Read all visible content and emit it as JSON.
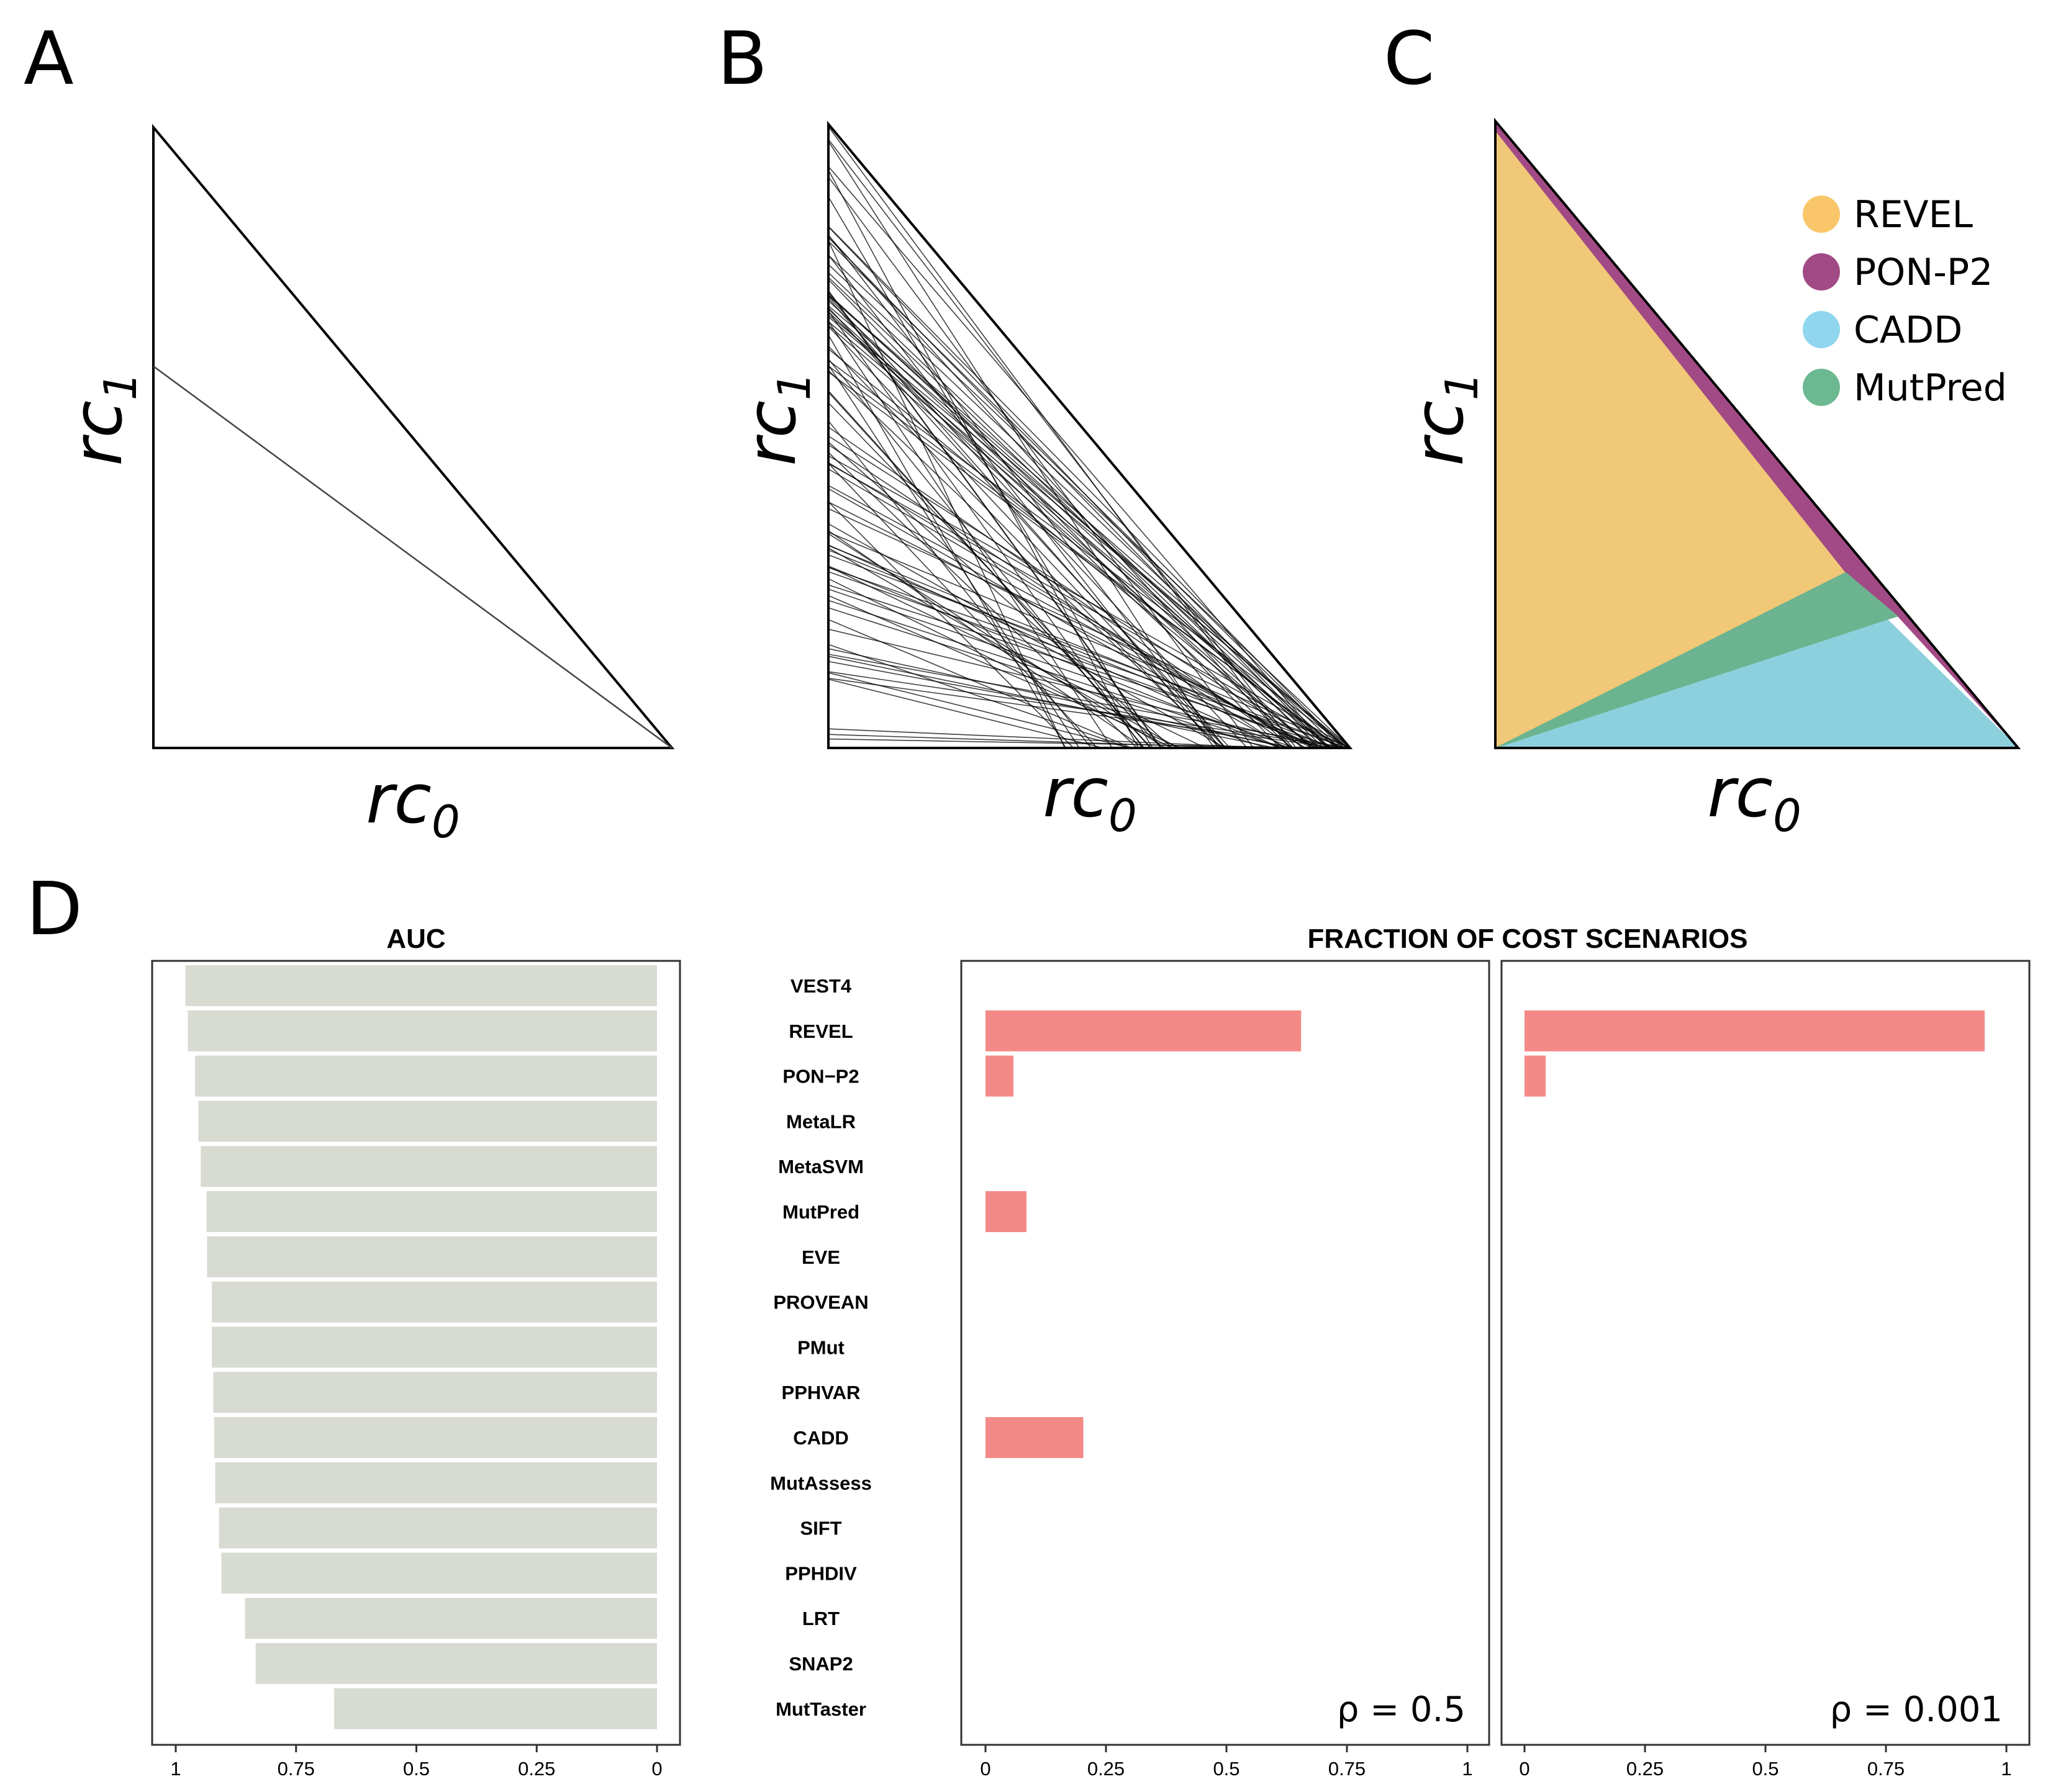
{
  "panels": {
    "A": {
      "letter": "A",
      "xlabel_base": "rc",
      "xlabel_sub": "0",
      "ylabel_base": "rc",
      "ylabel_sub": "1"
    },
    "B": {
      "letter": "B",
      "xlabel_base": "rc",
      "xlabel_sub": "0",
      "ylabel_base": "rc",
      "ylabel_sub": "1"
    },
    "C": {
      "letter": "C",
      "xlabel_base": "rc",
      "xlabel_sub": "0",
      "ylabel_base": "rc",
      "ylabel_sub": "1"
    },
    "D": {
      "letter": "D"
    }
  },
  "chart_data": [
    {
      "panel": "A",
      "type": "line",
      "xlabel": "rc0",
      "ylabel": "rc1",
      "xlim": [
        0,
        1
      ],
      "ylim": [
        0,
        1
      ],
      "boundary": "diagonal from (0,1) to (1,0)",
      "lines": [
        {
          "from": [
            0,
            0.615
          ],
          "to": [
            1,
            0
          ]
        }
      ]
    },
    {
      "panel": "B",
      "type": "line",
      "xlabel": "rc0",
      "ylabel": "rc1",
      "xlim": [
        0,
        1
      ],
      "ylim": [
        0,
        1
      ],
      "boundary": "diagonal from (0,1) to (1,0)",
      "line_count_approx": 100,
      "line_color": "#000000"
    },
    {
      "panel": "C",
      "type": "area",
      "xlabel": "rc0",
      "ylabel": "rc1",
      "xlim": [
        0,
        1
      ],
      "ylim": [
        0,
        1
      ],
      "legend_position": "top-right",
      "series": [
        {
          "name": "REVEL",
          "color": "#F0C878",
          "polygon": [
            [
              0,
              0
            ],
            [
              0,
              0.985
            ],
            [
              0.67,
              0.28
            ]
          ]
        },
        {
          "name": "PON-P2",
          "color": "#A24A85",
          "polygon": [
            [
              0,
              0.985
            ],
            [
              0,
              1
            ],
            [
              1,
              0
            ],
            [
              0.77,
              0.21
            ],
            [
              0.67,
              0.28
            ]
          ]
        },
        {
          "name": "CADD",
          "color": "#8DD0DD",
          "polygon": [
            [
              0,
              0
            ],
            [
              0.75,
              0.205
            ],
            [
              1,
              0
            ]
          ]
        },
        {
          "name": "MutPred",
          "color": "#6CB38F",
          "polygon": [
            [
              0,
              0
            ],
            [
              0.67,
              0.28
            ],
            [
              0.77,
              0.21
            ],
            [
              0.75,
              0.205
            ]
          ]
        }
      ],
      "legend_colors": {
        "REVEL": "#F9C76A",
        "PON-P2": "#A24A85",
        "CADD": "#8FD6EE",
        "MutPred": "#6CB890"
      }
    },
    {
      "panel": "D",
      "type": "bar",
      "title": "AUC",
      "orientation": "horizontal",
      "x_reversed": true,
      "xlim": [
        0,
        1
      ],
      "xticks": [
        "1",
        "0.75",
        "0.5",
        "0.25",
        "0"
      ],
      "bar_color": "#D7DBD1",
      "categories": [
        "VEST4",
        "REVEL",
        "PON−P2",
        "MetaLR",
        "MetaSVM",
        "MutPred",
        "EVE",
        "PROVEAN",
        "PMut",
        "PPHVAR",
        "CADD",
        "MutAssess",
        "SIFT",
        "PPHDIV",
        "LRT",
        "SNAP2",
        "MutTaster"
      ],
      "values": [
        0.98,
        0.975,
        0.96,
        0.953,
        0.948,
        0.936,
        0.935,
        0.925,
        0.925,
        0.922,
        0.92,
        0.918,
        0.91,
        0.905,
        0.856,
        0.834,
        0.671
      ]
    },
    {
      "panel": "D",
      "type": "bar",
      "title": "FRACTION OF COST SCENARIOS",
      "orientation": "horizontal",
      "xlim": [
        0,
        1
      ],
      "xticks": [
        "0",
        "0.25",
        "0.5",
        "0.75",
        "1"
      ],
      "bar_color": "#F48A87",
      "facets": [
        {
          "label": "ρ = 0.5",
          "values": [
            0,
            0.655,
            0.058,
            0,
            0,
            0.085,
            0,
            0,
            0,
            0,
            0.203,
            0,
            0,
            0,
            0,
            0,
            0
          ]
        },
        {
          "label": "ρ = 0.001",
          "values": [
            0,
            0.955,
            0.044,
            0,
            0,
            0,
            0,
            0,
            0,
            0,
            0,
            0,
            0,
            0,
            0,
            0,
            0
          ]
        }
      ]
    }
  ]
}
